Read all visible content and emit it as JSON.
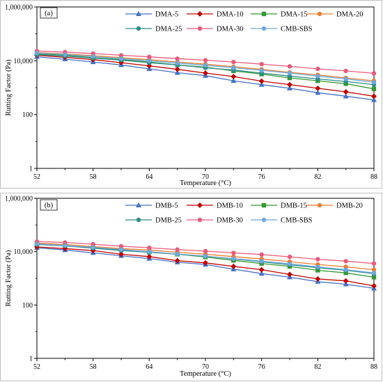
{
  "chart_data": [
    {
      "type": "line",
      "panel_label": "(a)",
      "xlabel": "Temperature (°C)",
      "ylabel": "Rutting Factor (Pa)",
      "yscale": "log",
      "xlim": [
        52,
        88
      ],
      "ylim": [
        1,
        1000000
      ],
      "xticks": [
        52,
        58,
        64,
        70,
        76,
        82,
        88
      ],
      "xtick_labels": [
        "52",
        "58",
        "64",
        "70",
        "76",
        "82",
        "88"
      ],
      "yticks": [
        1,
        100,
        10000,
        1000000
      ],
      "ytick_labels": [
        "1",
        "100",
        "10,000",
        "1,000,000"
      ],
      "legend_position": "top-right",
      "x": [
        52,
        55,
        58,
        61,
        64,
        67,
        70,
        73,
        76,
        79,
        82,
        85,
        88
      ],
      "series": [
        {
          "name": "DMA-5",
          "color": "#4472c4",
          "marker": "triangle",
          "values": [
            14000,
            11500,
            9000,
            7000,
            5000,
            3600,
            2800,
            1800,
            1300,
            950,
            650,
            480,
            350
          ]
        },
        {
          "name": "DMA-10",
          "color": "#c00000",
          "marker": "diamond",
          "values": [
            16000,
            13500,
            11000,
            8500,
            6500,
            4800,
            3500,
            2600,
            1750,
            1300,
            950,
            700,
            480
          ]
        },
        {
          "name": "DMA-15",
          "color": "#339933",
          "marker": "square",
          "values": [
            18000,
            16000,
            13000,
            11000,
            9000,
            7000,
            5800,
            4200,
            3200,
            2300,
            1800,
            1400,
            900
          ]
        },
        {
          "name": "DMA-20",
          "color": "#ed7d31",
          "marker": "circle",
          "values": [
            20000,
            18000,
            15500,
            13000,
            11000,
            9000,
            7500,
            6000,
            4800,
            3700,
            3000,
            2300,
            1800
          ]
        },
        {
          "name": "DMA-25",
          "color": "#2e8b8b",
          "marker": "circle",
          "values": [
            17000,
            15000,
            12500,
            10500,
            8500,
            7000,
            5500,
            4500,
            3500,
            2700,
            2100,
            1700,
            1300
          ]
        },
        {
          "name": "DMA-30",
          "color": "#ea5a7a",
          "marker": "circle",
          "values": [
            23000,
            21000,
            18500,
            16000,
            14000,
            12000,
            10500,
            9000,
            7500,
            6200,
            5000,
            4200,
            3400
          ]
        },
        {
          "name": "CMB-SBS",
          "color": "#6fa8dc",
          "marker": "circle",
          "values": [
            19500,
            17000,
            14500,
            12000,
            10000,
            8200,
            6800,
            5500,
            4400,
            3500,
            2700,
            2100,
            1600
          ]
        }
      ]
    },
    {
      "type": "line",
      "panel_label": "(b)",
      "xlabel": "Temperature (°C)",
      "ylabel": "Rutting Factor (Pa)",
      "yscale": "log",
      "xlim": [
        52,
        88
      ],
      "ylim": [
        1,
        1000000
      ],
      "xticks": [
        52,
        58,
        64,
        70,
        76,
        82,
        88
      ],
      "xtick_labels": [
        "52",
        "58",
        "64",
        "70",
        "76",
        "82",
        "88"
      ],
      "yticks": [
        1,
        100,
        10000,
        1000000
      ],
      "ytick_labels": [
        "1",
        "100",
        "10,000",
        "1,000,000"
      ],
      "legend_position": "top-right",
      "x": [
        52,
        55,
        58,
        61,
        64,
        67,
        70,
        73,
        76,
        79,
        82,
        85,
        88
      ],
      "series": [
        {
          "name": "DMB-5",
          "color": "#4472c4",
          "marker": "triangle",
          "values": [
            14000,
            11500,
            9000,
            7000,
            5500,
            4000,
            3300,
            2200,
            1500,
            1100,
            750,
            600,
            420
          ]
        },
        {
          "name": "DMB-10",
          "color": "#c00000",
          "marker": "diamond",
          "values": [
            15000,
            13000,
            11000,
            8000,
            6500,
            4600,
            3800,
            2800,
            2100,
            1400,
            950,
            800,
            520
          ]
        },
        {
          "name": "DMB-15",
          "color": "#339933",
          "marker": "square",
          "values": [
            19000,
            17000,
            14000,
            11500,
            9500,
            8000,
            6300,
            4700,
            3600,
            2800,
            2000,
            1600,
            1100
          ]
        },
        {
          "name": "DMB-20",
          "color": "#ed7d31",
          "marker": "circle",
          "values": [
            21000,
            18500,
            15500,
            13000,
            11500,
            9500,
            8000,
            6500,
            5300,
            4200,
            3300,
            2700,
            2100
          ]
        },
        {
          "name": "DMB-25",
          "color": "#2e8b8b",
          "marker": "circle",
          "values": [
            18500,
            16500,
            13500,
            11000,
            9500,
            8000,
            6800,
            5300,
            4200,
            3200,
            2500,
            2000,
            1500
          ]
        },
        {
          "name": "DMB-30",
          "color": "#ea5a7a",
          "marker": "circle",
          "values": [
            24000,
            22000,
            19000,
            16000,
            14000,
            12000,
            10500,
            9000,
            7800,
            6400,
            5200,
            4400,
            3600
          ]
        },
        {
          "name": "CMB-SBS",
          "color": "#6fa8dc",
          "marker": "circle",
          "values": [
            19500,
            17000,
            14500,
            12000,
            10000,
            8200,
            6800,
            5500,
            4400,
            3500,
            2700,
            2100,
            1600
          ]
        }
      ]
    }
  ]
}
